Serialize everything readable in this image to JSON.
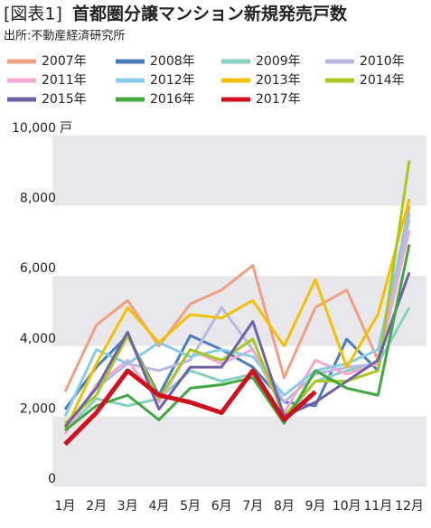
{
  "chart_data": {
    "type": "line",
    "figure_label": "[図表1]",
    "title": "首都圏分譲マンション新規発売戸数",
    "subtitle": "出所:不動産経済研究所",
    "y_unit": "戸",
    "categories": [
      "1月",
      "2月",
      "3月",
      "4月",
      "5月",
      "6月",
      "7月",
      "8月",
      "9月",
      "10月",
      "11月",
      "12月"
    ],
    "ylim": [
      0,
      10000
    ],
    "yticks": [
      0,
      {
        "value": 2000,
        "label": "2,000"
      },
      {
        "value": 4000,
        "label": "4,000"
      },
      {
        "value": 6000,
        "label": "6,000"
      },
      {
        "value": 8000,
        "label": "8,000"
      },
      {
        "value": 10000,
        "label": "10,000"
      }
    ],
    "series": [
      {
        "name": "2007年",
        "color": "#f0a080",
        "values": [
          2700,
          4600,
          5300,
          4000,
          5200,
          5600,
          6300,
          3100,
          5100,
          5600,
          3600,
          8000
        ]
      },
      {
        "name": "2008年",
        "color": "#4a7ebb",
        "values": [
          2200,
          3400,
          4300,
          2600,
          4300,
          3900,
          3400,
          2400,
          2300,
          4200,
          3300,
          7800
        ]
      },
      {
        "name": "2009年",
        "color": "#88d0c0",
        "values": [
          1600,
          2500,
          2300,
          2500,
          3300,
          3000,
          3200,
          1900,
          3000,
          3300,
          3500,
          5100
        ]
      },
      {
        "name": "2010年",
        "color": "#b8b8e0",
        "values": [
          1700,
          2800,
          3500,
          3300,
          3600,
          5100,
          3900,
          2400,
          3200,
          3400,
          3500,
          7600
        ]
      },
      {
        "name": "2011年",
        "color": "#f4a8d0",
        "values": [
          1500,
          2900,
          3600,
          2400,
          3900,
          3500,
          3900,
          2100,
          3600,
          3200,
          3500,
          7300
        ]
      },
      {
        "name": "2012年",
        "color": "#88cce8",
        "values": [
          2000,
          3900,
          3500,
          4100,
          3700,
          3900,
          3700,
          2600,
          3300,
          3500,
          3900,
          7800
        ]
      },
      {
        "name": "2013年",
        "color": "#f5c000",
        "values": [
          1600,
          3500,
          5100,
          4100,
          4900,
          4800,
          5300,
          4000,
          5900,
          3400,
          4900,
          8200
        ]
      },
      {
        "name": "2014年",
        "color": "#a8c820",
        "values": [
          1800,
          2600,
          4300,
          2500,
          3900,
          3600,
          4200,
          2000,
          3000,
          3000,
          3300,
          9300
        ]
      },
      {
        "name": "2015年",
        "color": "#7060a8",
        "values": [
          1700,
          2800,
          4400,
          2200,
          3400,
          3400,
          4700,
          2000,
          2400,
          3000,
          3600,
          6100
        ]
      },
      {
        "name": "2016年",
        "color": "#40a840",
        "values": [
          1600,
          2300,
          2600,
          1900,
          2800,
          2900,
          3100,
          1800,
          3300,
          2800,
          2600,
          6900
        ]
      },
      {
        "name": "2017年",
        "color": "#d0101e",
        "values": [
          1200,
          2100,
          3300,
          2600,
          2400,
          2100,
          3300,
          1900,
          2700,
          null,
          null,
          null
        ]
      }
    ]
  }
}
